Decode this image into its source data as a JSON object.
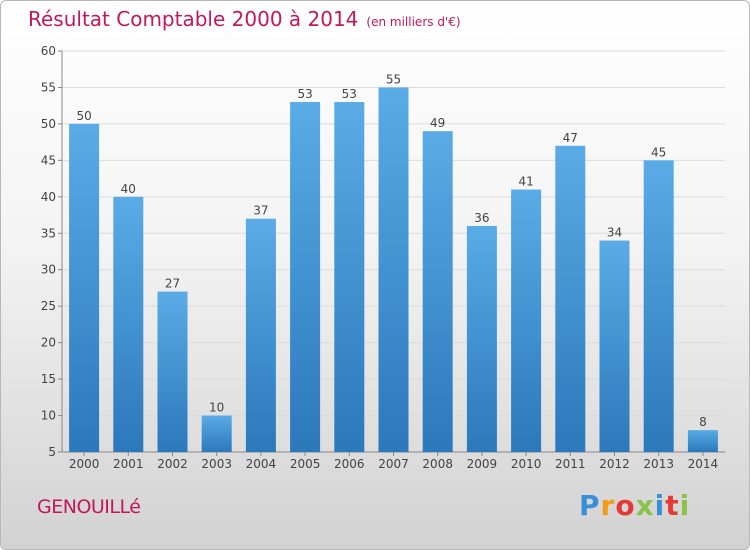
{
  "header": {
    "title": "Résultat Comptable 2000 à 2014",
    "subtitle": "(en milliers d'€)"
  },
  "footer": {
    "commune": "GENOUILLé",
    "brand_letters": [
      "P",
      "r",
      "o",
      "x",
      "i",
      "t",
      "i"
    ],
    "brand_colors": [
      "#3b8fd6",
      "#f39c12",
      "#e53935",
      "#8bc34a",
      "#3b8fd6",
      "#e53935",
      "#8bc34a"
    ]
  },
  "chart_data": {
    "type": "bar",
    "title": "Résultat Comptable 2000 à 2014",
    "subtitle": "(en milliers d'€)",
    "categories": [
      "2000",
      "2001",
      "2002",
      "2003",
      "2004",
      "2005",
      "2006",
      "2007",
      "2008",
      "2009",
      "2010",
      "2011",
      "2012",
      "2013",
      "2014"
    ],
    "values": [
      50,
      40,
      27,
      10,
      37,
      53,
      53,
      55,
      49,
      36,
      41,
      47,
      34,
      45,
      8
    ],
    "ylim": [
      5,
      60
    ],
    "yticks": [
      5,
      10,
      15,
      20,
      25,
      30,
      35,
      40,
      45,
      50,
      55,
      60
    ],
    "grid": true,
    "bar_color_top": "#5aabe6",
    "bar_color_bottom": "#2b78bb"
  }
}
